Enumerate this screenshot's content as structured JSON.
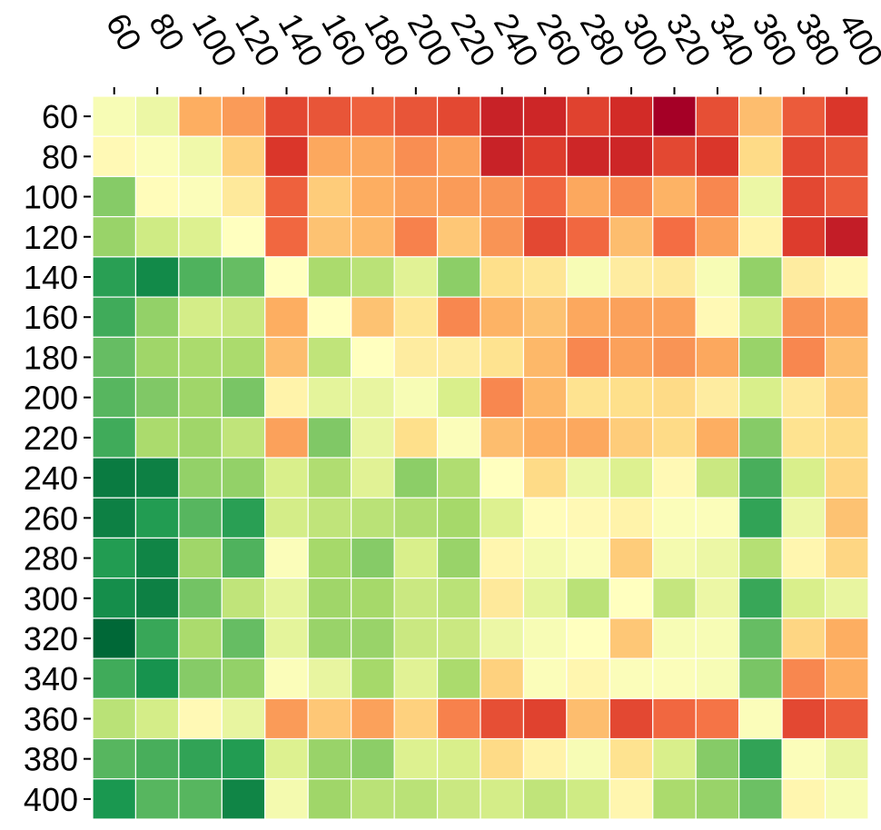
{
  "chart_data": {
    "type": "heatmap",
    "title": "",
    "xlabel": "",
    "ylabel": "",
    "x_labels": [
      "60",
      "80",
      "100",
      "120",
      "140",
      "160",
      "180",
      "200",
      "220",
      "240",
      "260",
      "280",
      "300",
      "320",
      "340",
      "360",
      "380",
      "400"
    ],
    "y_labels": [
      "60",
      "80",
      "100",
      "120",
      "140",
      "160",
      "180",
      "200",
      "220",
      "240",
      "260",
      "280",
      "300",
      "320",
      "340",
      "360",
      "380",
      "400"
    ],
    "colormap": "RdYlGn_r",
    "x_axis_position": "top",
    "grid": false,
    "values": [
      [
        0.48,
        0.45,
        0.7,
        0.73,
        0.86,
        0.84,
        0.82,
        0.84,
        0.86,
        0.93,
        0.92,
        0.87,
        0.91,
        1.0,
        0.85,
        0.67,
        0.83,
        0.89
      ],
      [
        0.52,
        0.49,
        0.46,
        0.63,
        0.89,
        0.71,
        0.71,
        0.75,
        0.72,
        0.93,
        0.88,
        0.92,
        0.92,
        0.86,
        0.89,
        0.61,
        0.86,
        0.84
      ],
      [
        0.25,
        0.51,
        0.49,
        0.57,
        0.82,
        0.64,
        0.7,
        0.72,
        0.73,
        0.74,
        0.81,
        0.71,
        0.76,
        0.69,
        0.76,
        0.45,
        0.86,
        0.83
      ],
      [
        0.28,
        0.38,
        0.41,
        0.5,
        0.81,
        0.66,
        0.68,
        0.77,
        0.65,
        0.74,
        0.86,
        0.81,
        0.67,
        0.8,
        0.72,
        0.54,
        0.88,
        0.94
      ],
      [
        0.12,
        0.07,
        0.17,
        0.2,
        0.5,
        0.31,
        0.34,
        0.42,
        0.26,
        0.6,
        0.58,
        0.48,
        0.56,
        0.57,
        0.48,
        0.27,
        0.56,
        0.52
      ],
      [
        0.15,
        0.27,
        0.39,
        0.37,
        0.7,
        0.5,
        0.66,
        0.58,
        0.76,
        0.69,
        0.66,
        0.71,
        0.72,
        0.72,
        0.52,
        0.38,
        0.74,
        0.72
      ],
      [
        0.2,
        0.29,
        0.31,
        0.31,
        0.67,
        0.35,
        0.5,
        0.56,
        0.56,
        0.59,
        0.68,
        0.76,
        0.72,
        0.74,
        0.71,
        0.28,
        0.76,
        0.67
      ],
      [
        0.18,
        0.24,
        0.29,
        0.23,
        0.54,
        0.43,
        0.44,
        0.48,
        0.4,
        0.76,
        0.68,
        0.59,
        0.6,
        0.61,
        0.56,
        0.4,
        0.57,
        0.64
      ],
      [
        0.15,
        0.31,
        0.29,
        0.35,
        0.72,
        0.24,
        0.44,
        0.6,
        0.49,
        0.67,
        0.7,
        0.71,
        0.64,
        0.61,
        0.7,
        0.25,
        0.59,
        0.61
      ],
      [
        0.04,
        0.05,
        0.27,
        0.27,
        0.4,
        0.32,
        0.42,
        0.26,
        0.32,
        0.5,
        0.61,
        0.45,
        0.41,
        0.52,
        0.37,
        0.16,
        0.4,
        0.62
      ],
      [
        0.05,
        0.11,
        0.18,
        0.12,
        0.39,
        0.35,
        0.34,
        0.32,
        0.3,
        0.41,
        0.51,
        0.52,
        0.54,
        0.49,
        0.49,
        0.13,
        0.45,
        0.66
      ],
      [
        0.11,
        0.06,
        0.29,
        0.17,
        0.49,
        0.3,
        0.25,
        0.4,
        0.28,
        0.53,
        0.47,
        0.49,
        0.64,
        0.47,
        0.45,
        0.33,
        0.53,
        0.62
      ],
      [
        0.08,
        0.05,
        0.22,
        0.35,
        0.43,
        0.29,
        0.3,
        0.37,
        0.34,
        0.57,
        0.43,
        0.34,
        0.5,
        0.36,
        0.45,
        0.14,
        0.4,
        0.44
      ],
      [
        0.0,
        0.14,
        0.31,
        0.2,
        0.43,
        0.28,
        0.28,
        0.37,
        0.37,
        0.45,
        0.48,
        0.5,
        0.65,
        0.48,
        0.48,
        0.2,
        0.62,
        0.7
      ],
      [
        0.15,
        0.09,
        0.25,
        0.27,
        0.49,
        0.44,
        0.3,
        0.42,
        0.31,
        0.63,
        0.49,
        0.53,
        0.49,
        0.49,
        0.48,
        0.23,
        0.76,
        0.7
      ],
      [
        0.34,
        0.39,
        0.52,
        0.44,
        0.73,
        0.65,
        0.72,
        0.63,
        0.77,
        0.85,
        0.87,
        0.67,
        0.86,
        0.81,
        0.79,
        0.49,
        0.86,
        0.83
      ],
      [
        0.18,
        0.16,
        0.13,
        0.11,
        0.41,
        0.28,
        0.26,
        0.41,
        0.4,
        0.61,
        0.54,
        0.48,
        0.59,
        0.4,
        0.25,
        0.13,
        0.49,
        0.44
      ],
      [
        0.1,
        0.18,
        0.18,
        0.06,
        0.47,
        0.29,
        0.34,
        0.34,
        0.37,
        0.39,
        0.35,
        0.38,
        0.53,
        0.31,
        0.28,
        0.21,
        0.53,
        0.48
      ]
    ]
  }
}
